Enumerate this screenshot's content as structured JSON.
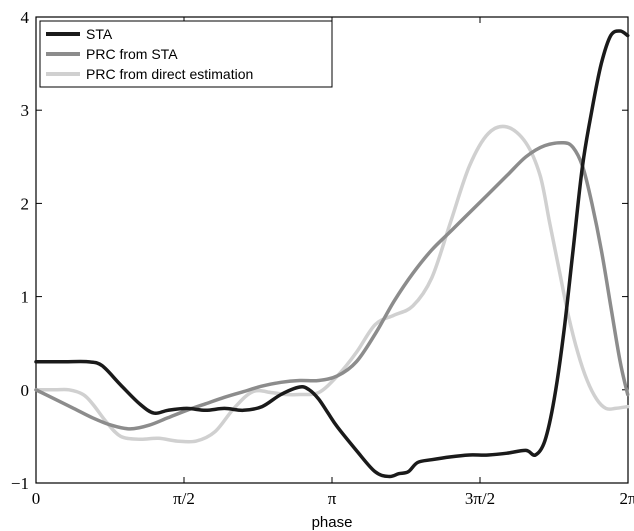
{
  "chart_data": {
    "type": "line",
    "title": "",
    "xlabel": "phase",
    "ylabel": "",
    "xlim": [
      0,
      6.2832
    ],
    "ylim": [
      -1,
      4
    ],
    "grid": false,
    "legend_position": "top-left",
    "x_ticks": [
      {
        "value": 0,
        "label": "0"
      },
      {
        "value": 1.5708,
        "label": "π/2"
      },
      {
        "value": 3.1416,
        "label": "π"
      },
      {
        "value": 4.7124,
        "label": "3π/2"
      },
      {
        "value": 6.2832,
        "label": "2π"
      }
    ],
    "y_ticks": [
      {
        "value": -1,
        "label": "−1"
      },
      {
        "value": 0,
        "label": "0"
      },
      {
        "value": 1,
        "label": "1"
      },
      {
        "value": 2,
        "label": "2"
      },
      {
        "value": 3,
        "label": "3"
      },
      {
        "value": 4,
        "label": "4"
      }
    ],
    "series": [
      {
        "name": "STA",
        "color": "#1a1a1a",
        "x": [
          0,
          0.3,
          0.55,
          0.7,
          0.9,
          1.1,
          1.25,
          1.4,
          1.6,
          1.8,
          2.0,
          2.2,
          2.4,
          2.6,
          2.8,
          2.9,
          3.0,
          3.1,
          3.2,
          3.4,
          3.6,
          3.75,
          3.85,
          3.95,
          4.05,
          4.2,
          4.4,
          4.6,
          4.8,
          5.0,
          5.2,
          5.3,
          5.4,
          5.5,
          5.6,
          5.7,
          5.8,
          5.9,
          6.0,
          6.1,
          6.2,
          6.28
        ],
        "y": [
          0.3,
          0.3,
          0.3,
          0.26,
          0.05,
          -0.15,
          -0.25,
          -0.22,
          -0.2,
          -0.22,
          -0.2,
          -0.22,
          -0.18,
          -0.05,
          0.03,
          0.0,
          -0.1,
          -0.25,
          -0.4,
          -0.65,
          -0.88,
          -0.93,
          -0.9,
          -0.88,
          -0.78,
          -0.75,
          -0.72,
          -0.7,
          -0.7,
          -0.68,
          -0.65,
          -0.7,
          -0.55,
          -0.1,
          0.6,
          1.5,
          2.4,
          3.0,
          3.5,
          3.8,
          3.85,
          3.8
        ]
      },
      {
        "name": "PRC from STA",
        "color": "#8c8c8c",
        "x": [
          0,
          0.2,
          0.4,
          0.6,
          0.8,
          1.0,
          1.2,
          1.4,
          1.6,
          1.8,
          2.0,
          2.2,
          2.4,
          2.6,
          2.8,
          3.0,
          3.2,
          3.4,
          3.6,
          3.8,
          4.0,
          4.2,
          4.4,
          4.6,
          4.8,
          5.0,
          5.2,
          5.4,
          5.6,
          5.7,
          5.8,
          5.9,
          6.0,
          6.1,
          6.2,
          6.28
        ],
        "y": [
          0.0,
          -0.1,
          -0.2,
          -0.3,
          -0.38,
          -0.42,
          -0.38,
          -0.3,
          -0.22,
          -0.15,
          -0.08,
          -0.02,
          0.04,
          0.08,
          0.1,
          0.1,
          0.15,
          0.3,
          0.6,
          0.95,
          1.25,
          1.5,
          1.7,
          1.9,
          2.1,
          2.3,
          2.5,
          2.62,
          2.65,
          2.6,
          2.4,
          2.0,
          1.5,
          0.9,
          0.3,
          -0.05
        ]
      },
      {
        "name": "PRC from direct estimation",
        "color": "#d0d0d0",
        "x": [
          0,
          0.2,
          0.35,
          0.5,
          0.6,
          0.75,
          0.9,
          1.1,
          1.3,
          1.5,
          1.7,
          1.9,
          2.1,
          2.3,
          2.5,
          2.65,
          2.8,
          3.0,
          3.2,
          3.4,
          3.6,
          3.8,
          4.0,
          4.2,
          4.4,
          4.6,
          4.8,
          5.0,
          5.2,
          5.35,
          5.45,
          5.55,
          5.65,
          5.75,
          5.85,
          5.95,
          6.05,
          6.15,
          6.28
        ],
        "y": [
          0.0,
          0.0,
          0.0,
          -0.05,
          -0.15,
          -0.35,
          -0.5,
          -0.53,
          -0.52,
          -0.55,
          -0.55,
          -0.45,
          -0.2,
          -0.02,
          -0.03,
          -0.05,
          -0.05,
          -0.03,
          0.15,
          0.4,
          0.7,
          0.8,
          0.9,
          1.2,
          1.8,
          2.4,
          2.75,
          2.82,
          2.65,
          2.3,
          1.8,
          1.3,
          0.8,
          0.4,
          0.1,
          -0.1,
          -0.2,
          -0.2,
          -0.18
        ]
      }
    ]
  }
}
